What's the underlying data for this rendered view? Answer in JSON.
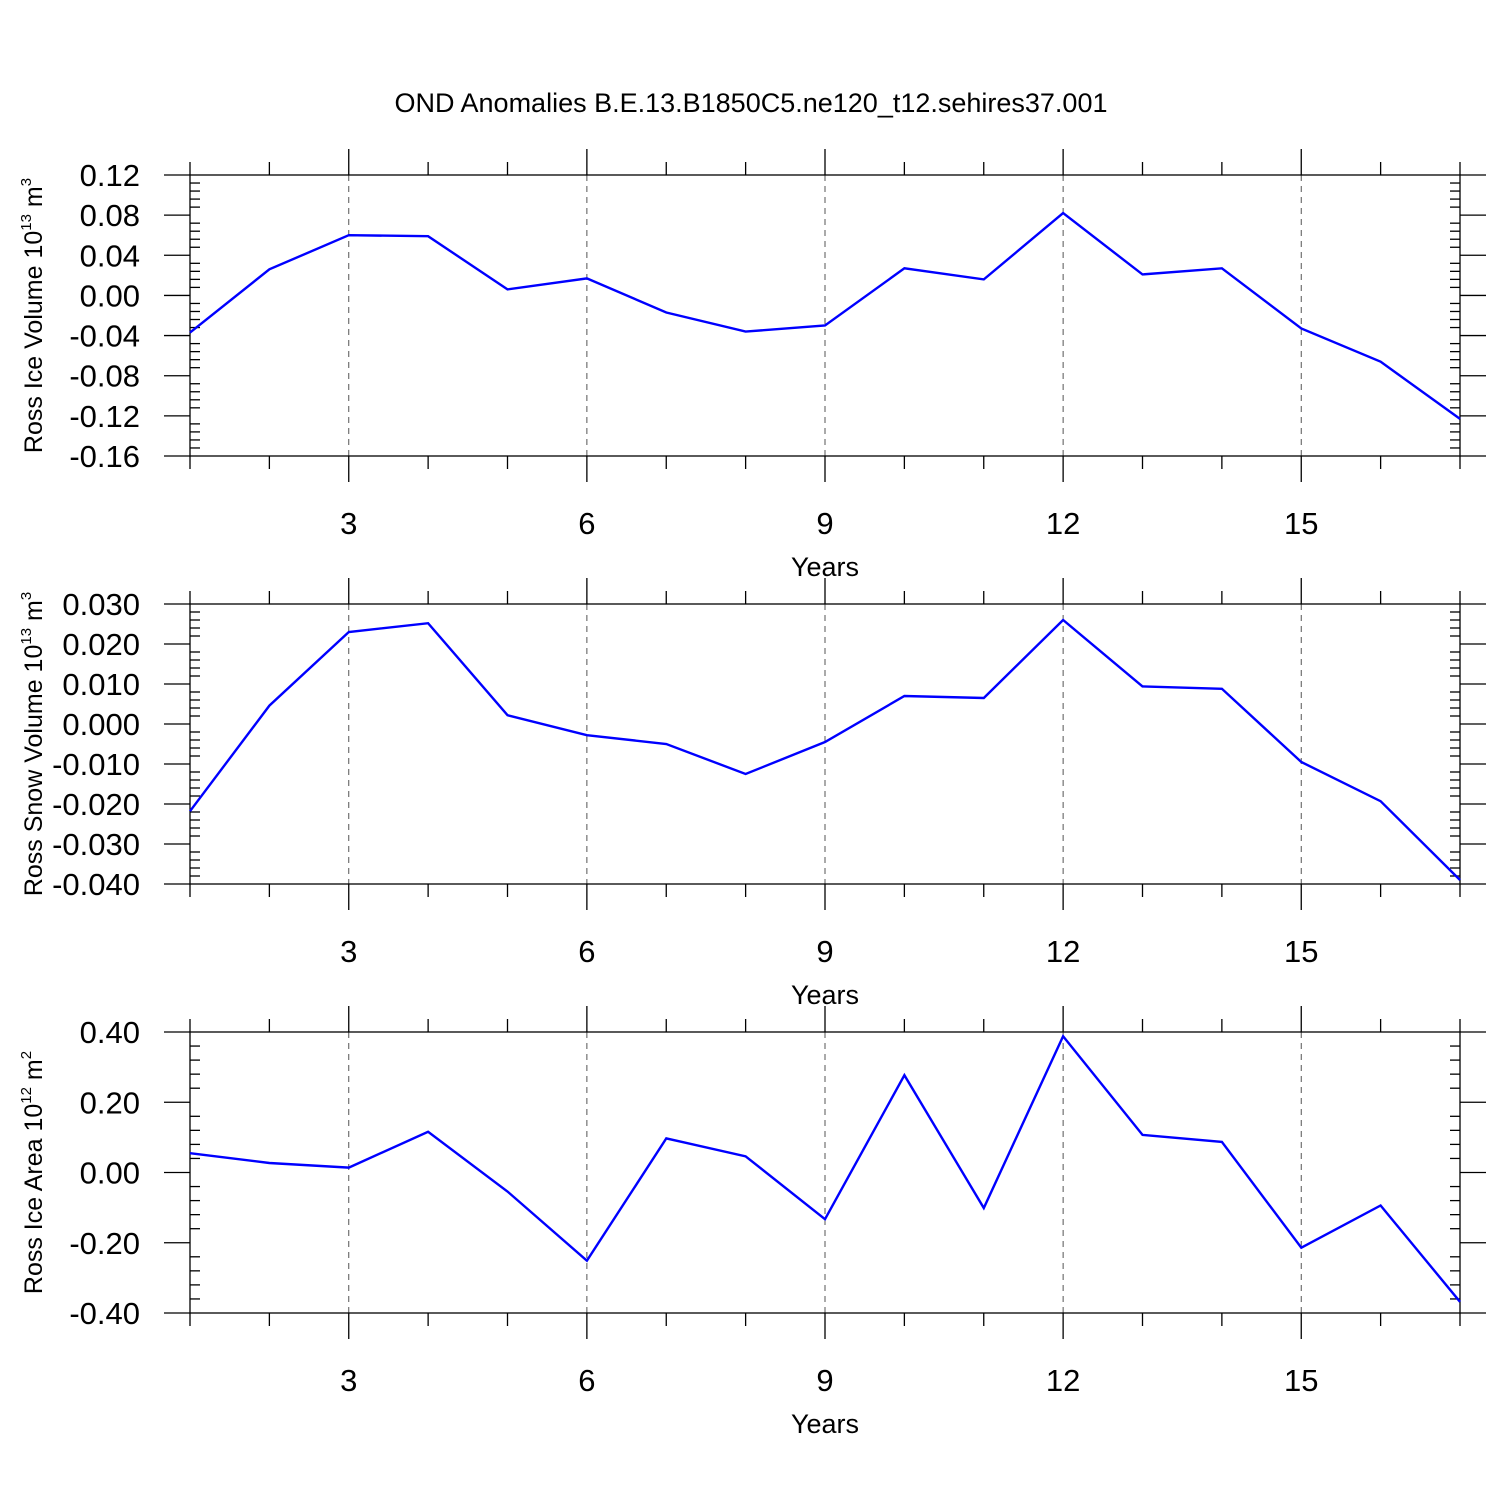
{
  "title": "OND Anomalies B.E.13.B1850C5.ne120_t12.sehires37.001",
  "chart_data": [
    {
      "type": "line",
      "ylabel": {
        "base": "Ross Ice Volume 10",
        "exp1": "13",
        "unit": " m",
        "exp2": "3"
      },
      "xlabel": "Years",
      "x": [
        1,
        2,
        3,
        4,
        5,
        6,
        7,
        8,
        9,
        10,
        11,
        12,
        13,
        14,
        15,
        16,
        17
      ],
      "values": [
        -0.037,
        0.026,
        0.06,
        0.059,
        0.006,
        0.017,
        -0.017,
        -0.036,
        -0.03,
        0.027,
        0.016,
        0.082,
        0.021,
        0.027,
        -0.033,
        -0.066,
        -0.123
      ],
      "xlim": [
        1,
        17
      ],
      "ylim": [
        -0.16,
        0.12
      ],
      "yticks": [
        0.12,
        0.08,
        0.04,
        0.0,
        -0.04,
        -0.08,
        -0.12,
        -0.16
      ],
      "ytick_labels": [
        "0.12",
        "0.08",
        "0.04",
        "0.00",
        "-0.04",
        "-0.08",
        "-0.12",
        "-0.16"
      ],
      "xticks": [
        3,
        6,
        9,
        12,
        15
      ],
      "xtick_labels": [
        "3",
        "6",
        "9",
        "12",
        "15"
      ],
      "grid": "dashed vertical at major x ticks",
      "color": "#0000ff"
    },
    {
      "type": "line",
      "ylabel": {
        "base": "Ross Snow Volume 10",
        "exp1": "13",
        "unit": " m",
        "exp2": "3"
      },
      "xlabel": "Years",
      "x": [
        1,
        2,
        3,
        4,
        5,
        6,
        7,
        8,
        9,
        10,
        11,
        12,
        13,
        14,
        15,
        16,
        17
      ],
      "values": [
        -0.0218,
        0.0046,
        0.023,
        0.0252,
        0.0022,
        -0.0028,
        -0.005,
        -0.0125,
        -0.0045,
        0.007,
        0.0065,
        0.026,
        0.0094,
        0.0088,
        -0.0095,
        -0.0193,
        -0.039
      ],
      "xlim": [
        1,
        17
      ],
      "ylim": [
        -0.04,
        0.03
      ],
      "yticks": [
        0.03,
        0.02,
        0.01,
        0.0,
        -0.01,
        -0.02,
        -0.03,
        -0.04
      ],
      "ytick_labels": [
        "0.030",
        "0.020",
        "0.010",
        "0.000",
        "-0.010",
        "-0.020",
        "-0.030",
        "-0.040"
      ],
      "xticks": [
        3,
        6,
        9,
        12,
        15
      ],
      "xtick_labels": [
        "3",
        "6",
        "9",
        "12",
        "15"
      ],
      "grid": "dashed vertical at major x ticks",
      "color": "#0000ff"
    },
    {
      "type": "line",
      "ylabel": {
        "base": "Ross Ice Area 10",
        "exp1": "12",
        "unit": " m",
        "exp2": "2"
      },
      "xlabel": "Years",
      "x": [
        1,
        2,
        3,
        4,
        5,
        6,
        7,
        8,
        9,
        10,
        11,
        12,
        13,
        14,
        15,
        16,
        17
      ],
      "values": [
        0.055,
        0.027,
        0.014,
        0.116,
        -0.054,
        -0.251,
        0.097,
        0.046,
        -0.133,
        0.277,
        -0.101,
        0.388,
        0.107,
        0.087,
        -0.214,
        -0.094,
        -0.368
      ],
      "xlim": [
        1,
        17
      ],
      "ylim": [
        -0.4,
        0.4
      ],
      "yticks": [
        0.4,
        0.2,
        0.0,
        -0.2,
        -0.4
      ],
      "ytick_labels": [
        "0.40",
        "0.20",
        "0.00",
        "-0.20",
        "-0.40"
      ],
      "xticks": [
        3,
        6,
        9,
        12,
        15
      ],
      "xtick_labels": [
        "3",
        "6",
        "9",
        "12",
        "15"
      ],
      "grid": "dashed vertical at major x ticks",
      "color": "#0000ff"
    }
  ]
}
